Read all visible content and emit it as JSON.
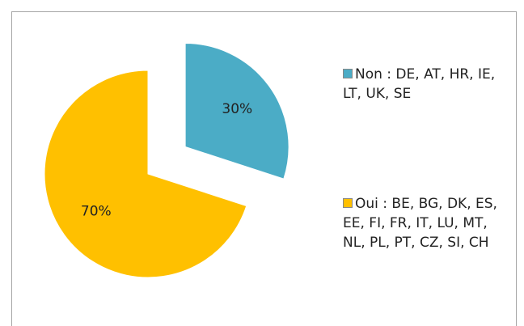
{
  "chart_data": {
    "type": "pie",
    "categories": [
      "Non : DE, AT, HR, IE, LT, UK, SE",
      "Oui : BE, BG, DK, ES, EE, FI, FR, IT, LU, MT, NL, PL, PT, CZ, SI, CH"
    ],
    "values": [
      30,
      70
    ],
    "value_labels": [
      "30%",
      "70%"
    ],
    "colors": [
      "#4bacc6",
      "#ffc000"
    ],
    "exploded": [
      true,
      false
    ],
    "legend": "right"
  }
}
